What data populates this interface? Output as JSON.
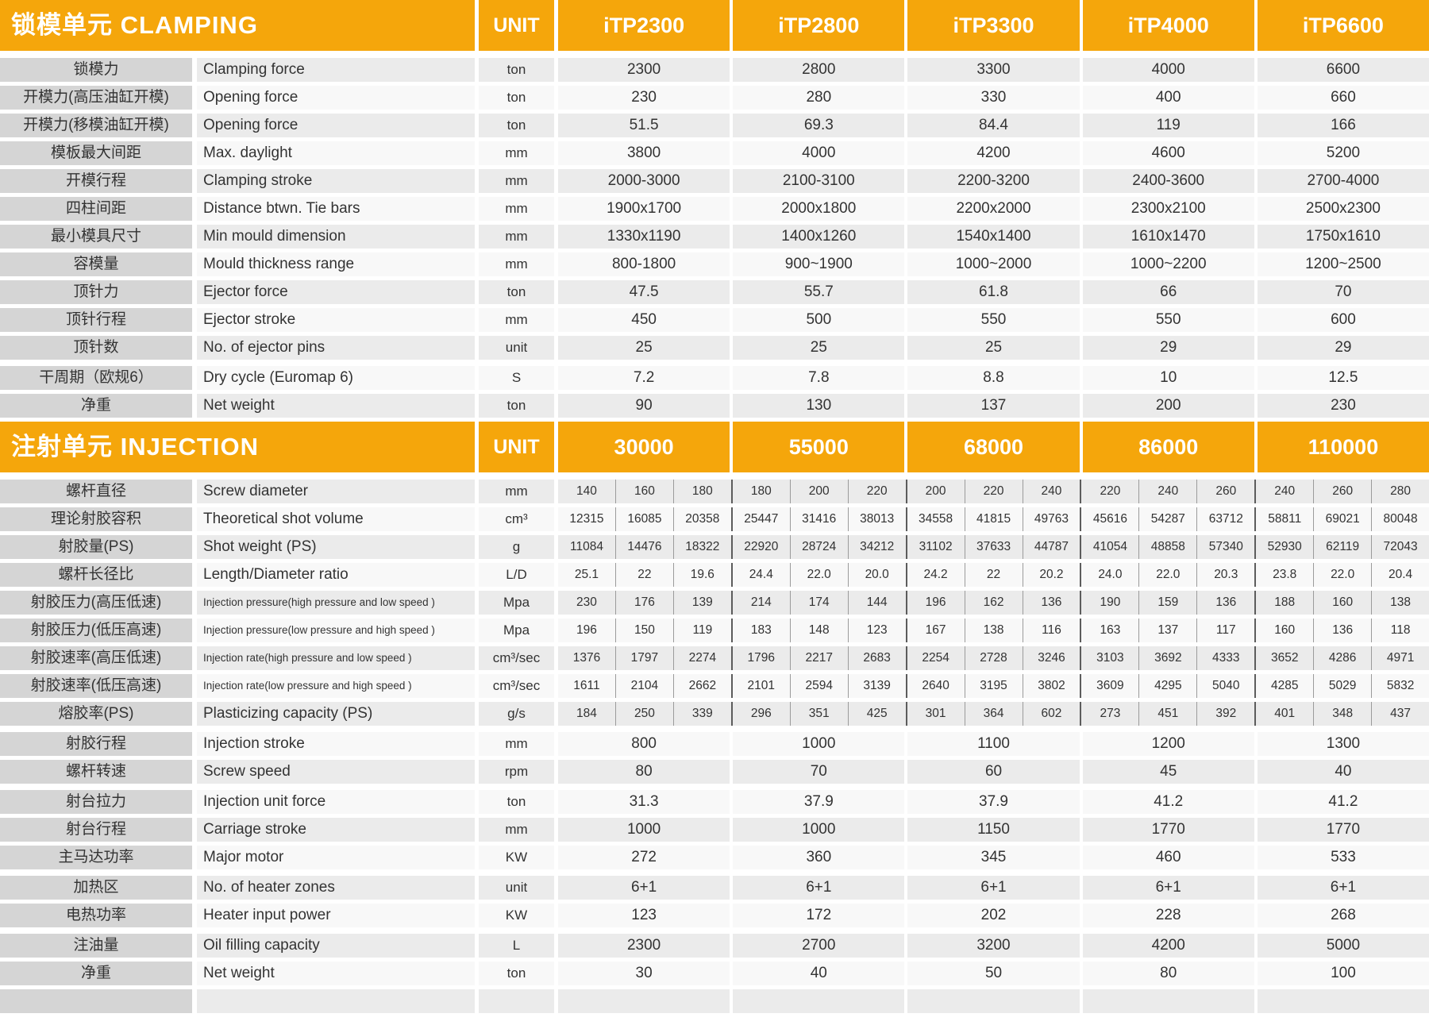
{
  "colors": {
    "accent_orange": "#F5A60B",
    "label_column_bg": "#D5D5D5",
    "row_shaded": "#EBEBEB",
    "row_light": "#F8F8F8",
    "header_text": "#FFFFFF",
    "body_text": "#333333"
  },
  "clamping": {
    "title": "锁模单元 CLAMPING",
    "unit_label": "UNIT",
    "models": [
      "iTP2300",
      "iTP2800",
      "iTP3300",
      "iTP4000",
      "iTP6600"
    ],
    "rows": [
      {
        "cn": "锁模力",
        "en": "Clamping force",
        "unit": "ton",
        "values": [
          "2300",
          "2800",
          "3300",
          "4000",
          "6600"
        ]
      },
      {
        "cn": "开模力(高压油缸开模)",
        "en": "Opening force",
        "unit": "ton",
        "values": [
          "230",
          "280",
          "330",
          "400",
          "660"
        ]
      },
      {
        "cn": "开模力(移模油缸开模)",
        "en": "Opening force",
        "unit": "ton",
        "values": [
          "51.5",
          "69.3",
          "84.4",
          "119",
          "166"
        ]
      },
      {
        "cn": "模板最大间距",
        "en": "Max. daylight",
        "unit": "mm",
        "values": [
          "3800",
          "4000",
          "4200",
          "4600",
          "5200"
        ]
      },
      {
        "cn": "开模行程",
        "en": "Clamping stroke",
        "unit": "mm",
        "values": [
          "2000-3000",
          "2100-3100",
          "2200-3200",
          "2400-3600",
          "2700-4000"
        ]
      },
      {
        "cn": "四柱间距",
        "en": "Distance btwn. Tie bars",
        "unit": "mm",
        "values": [
          "1900x1700",
          "2000x1800",
          "2200x2000",
          "2300x2100",
          "2500x2300"
        ]
      },
      {
        "cn": "最小模具尺寸",
        "en": "Min mould dimension",
        "unit": "mm",
        "values": [
          "1330x1190",
          "1400x1260",
          "1540x1400",
          "1610x1470",
          "1750x1610"
        ]
      },
      {
        "cn": "容模量",
        "en": "Mould thickness range",
        "unit": "mm",
        "values": [
          "800-1800",
          "900~1900",
          "1000~2000",
          "1000~2200",
          "1200~2500"
        ]
      },
      {
        "cn": "顶针力",
        "en": "Ejector force",
        "unit": "ton",
        "values": [
          "47.5",
          "55.7",
          "61.8",
          "66",
          "70"
        ]
      },
      {
        "cn": "顶针行程",
        "en": "Ejector stroke",
        "unit": "mm",
        "values": [
          "450",
          "500",
          "550",
          "550",
          "600"
        ]
      },
      {
        "cn": "顶针数",
        "en": "No. of ejector pins",
        "unit": "unit",
        "values": [
          "25",
          "25",
          "25",
          "29",
          "29"
        ]
      },
      {
        "cn": "干周期（欧规6）",
        "en": "Dry cycle (Euromap 6)",
        "unit": "S",
        "gap_before": true,
        "values": [
          "7.2",
          "7.8",
          "8.8",
          "10",
          "12.5"
        ]
      },
      {
        "cn": "净重",
        "en": "Net weight",
        "unit": "ton",
        "values": [
          "90",
          "130",
          "137",
          "200",
          "230"
        ]
      }
    ]
  },
  "injection": {
    "title": "注射单元 INJECTION",
    "unit_label": "UNIT",
    "models": [
      "30000",
      "55000",
      "68000",
      "86000",
      "110000"
    ],
    "detail_rows": [
      {
        "cn": "螺杆直径",
        "en": "Screw diameter",
        "unit": "mm",
        "values": [
          "140",
          "160",
          "180",
          "180",
          "200",
          "220",
          "200",
          "220",
          "240",
          "220",
          "240",
          "260",
          "240",
          "260",
          "280"
        ]
      },
      {
        "cn": "理论射胶容积",
        "en": "Theoretical shot volume",
        "unit": "cm³",
        "values": [
          "12315",
          "16085",
          "20358",
          "25447",
          "31416",
          "38013",
          "34558",
          "41815",
          "49763",
          "45616",
          "54287",
          "63712",
          "58811",
          "69021",
          "80048"
        ]
      },
      {
        "cn": "射胶量(PS)",
        "en": "Shot weight (PS)",
        "unit": "g",
        "values": [
          "11084",
          "14476",
          "18322",
          "22920",
          "28724",
          "34212",
          "31102",
          "37633",
          "44787",
          "41054",
          "48858",
          "57340",
          "52930",
          "62119",
          "72043"
        ]
      },
      {
        "cn": "螺杆长径比",
        "en": "Length/Diameter ratio",
        "unit": "L/D",
        "values": [
          "25.1",
          "22",
          "19.6",
          "24.4",
          "22.0",
          "20.0",
          "24.2",
          "22",
          "20.2",
          "24.0",
          "22.0",
          "20.3",
          "23.8",
          "22.0",
          "20.4"
        ]
      },
      {
        "cn": "射胶压力(高压低速)",
        "en": "Injection pressure(high pressure and low speed )",
        "unit": "Mpa",
        "small_en": true,
        "values": [
          "230",
          "176",
          "139",
          "214",
          "174",
          "144",
          "196",
          "162",
          "136",
          "190",
          "159",
          "136",
          "188",
          "160",
          "138"
        ]
      },
      {
        "cn": "射胶压力(低压高速)",
        "en": "Injection pressure(low pressure and high speed )",
        "unit": "Mpa",
        "small_en": true,
        "values": [
          "196",
          "150",
          "119",
          "183",
          "148",
          "123",
          "167",
          "138",
          "116",
          "163",
          "137",
          "117",
          "160",
          "136",
          "118"
        ]
      },
      {
        "cn": "射胶速率(高压低速)",
        "en": "Injection rate(high pressure and low speed )",
        "unit": "cm³/sec",
        "small_en": true,
        "values": [
          "1376",
          "1797",
          "2274",
          "1796",
          "2217",
          "2683",
          "2254",
          "2728",
          "3246",
          "3103",
          "3692",
          "4333",
          "3652",
          "4286",
          "4971"
        ]
      },
      {
        "cn": "射胶速率(低压高速)",
        "en": "Injection rate(low pressure and high speed )",
        "unit": "cm³/sec",
        "small_en": true,
        "values": [
          "1611",
          "2104",
          "2662",
          "2101",
          "2594",
          "3139",
          "2640",
          "3195",
          "3802",
          "3609",
          "4295",
          "5040",
          "4285",
          "5029",
          "5832"
        ]
      },
      {
        "cn": "熔胶率(PS)",
        "en": "Plasticizing capacity (PS)",
        "unit": "g/s",
        "values": [
          "184",
          "250",
          "339",
          "296",
          "351",
          "425",
          "301",
          "364",
          "602",
          "273",
          "451",
          "392",
          "401",
          "348",
          "437"
        ]
      }
    ],
    "summary_rows": [
      {
        "cn": "射胶行程",
        "en": "Injection stroke",
        "unit": "mm",
        "gap_before": true,
        "values": [
          "800",
          "1000",
          "1100",
          "1200",
          "1300"
        ]
      },
      {
        "cn": "螺杆转速",
        "en": "Screw speed",
        "unit": "rpm",
        "values": [
          "80",
          "70",
          "60",
          "45",
          "40"
        ]
      },
      {
        "cn": "射台拉力",
        "en": "Injection unit force",
        "unit": "ton",
        "gap_before": true,
        "values": [
          "31.3",
          "37.9",
          "37.9",
          "41.2",
          "41.2"
        ]
      },
      {
        "cn": "射台行程",
        "en": "Carriage stroke",
        "unit": "mm",
        "values": [
          "1000",
          "1000",
          "1150",
          "1770",
          "1770"
        ]
      },
      {
        "cn": "主马达功率",
        "en": "Major motor",
        "unit": "KW",
        "values": [
          "272",
          "360",
          "345",
          "460",
          "533"
        ]
      },
      {
        "cn": "加热区",
        "en": "No. of heater zones",
        "unit": "unit",
        "gap_before": true,
        "values": [
          "6+1",
          "6+1",
          "6+1",
          "6+1",
          "6+1"
        ]
      },
      {
        "cn": "电热功率",
        "en": "Heater input power",
        "unit": "KW",
        "values": [
          "123",
          "172",
          "202",
          "228",
          "268"
        ]
      },
      {
        "cn": "注油量",
        "en": "Oil filling capacity",
        "unit": "L",
        "gap_before": true,
        "values": [
          "2300",
          "2700",
          "3200",
          "4200",
          "5000"
        ]
      },
      {
        "cn": "净重",
        "en": "Net weight",
        "unit": "ton",
        "values": [
          "30",
          "40",
          "50",
          "80",
          "100"
        ]
      }
    ]
  }
}
